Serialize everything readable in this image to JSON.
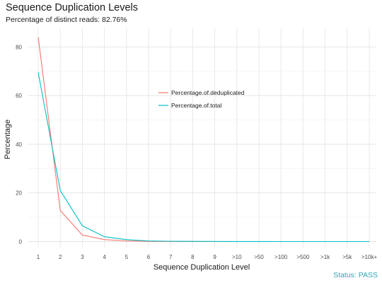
{
  "chart_data": {
    "type": "line",
    "title": "Sequence Duplication Levels",
    "subtitle": "Percentage of distinct reads: 82.76%",
    "xlabel": "Sequence Duplication Level",
    "ylabel": "Percentage",
    "categories": [
      "1",
      "2",
      "3",
      "4",
      "5",
      "6",
      "7",
      "8",
      "9",
      ">10",
      ">50",
      ">100",
      ">500",
      ">1k",
      ">5k",
      ">10k+"
    ],
    "ylim": [
      0,
      88
    ],
    "yticks": [
      0,
      20,
      40,
      60,
      80
    ],
    "grid": true,
    "legend_position": "center-right",
    "series": [
      {
        "name": "Percentage.of.deduplicated",
        "color": "#f8766d",
        "values": [
          84.0,
          12.8,
          2.7,
          0.8,
          0.3,
          0.1,
          0.05,
          0.02,
          0.01,
          0.0,
          0.0,
          0.0,
          0.0,
          0.0,
          0.0,
          0.0
        ]
      },
      {
        "name": "Percentage.of.total",
        "color": "#00bfc4",
        "values": [
          69.5,
          21.0,
          6.5,
          2.0,
          0.8,
          0.3,
          0.15,
          0.08,
          0.05,
          0.03,
          0.02,
          0.01,
          0.0,
          0.0,
          0.0,
          0.0
        ]
      }
    ]
  },
  "status": {
    "text": "Status: PASS",
    "color": "#2fa6b4"
  }
}
